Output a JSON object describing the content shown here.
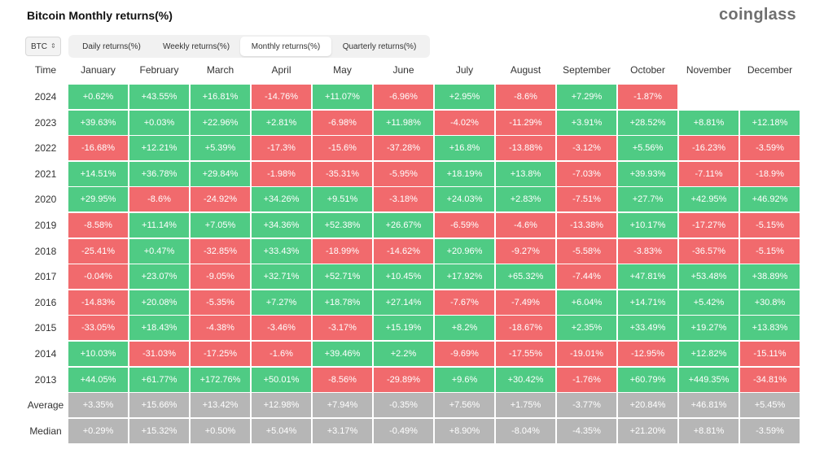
{
  "page": {
    "title": "Bitcoin Monthly returns(%)",
    "brand": "coinglass"
  },
  "asset_select": {
    "value": "BTC"
  },
  "tabs": [
    {
      "label": "Daily returns(%)",
      "active": false
    },
    {
      "label": "Weekly returns(%)",
      "active": false
    },
    {
      "label": "Monthly returns(%)",
      "active": true
    },
    {
      "label": "Quarterly returns(%)",
      "active": false
    }
  ],
  "colors": {
    "positive": "#4fcb84",
    "negative": "#f16a6d",
    "summary": "#b6b6b6"
  },
  "table": {
    "time_header": "Time",
    "months": [
      "January",
      "February",
      "March",
      "April",
      "May",
      "June",
      "July",
      "August",
      "September",
      "October",
      "November",
      "December"
    ],
    "rows": [
      {
        "label": "2024",
        "values": [
          "+0.62%",
          "+43.55%",
          "+16.81%",
          "-14.76%",
          "+11.07%",
          "-6.96%",
          "+2.95%",
          "-8.6%",
          "+7.29%",
          "-1.87%"
        ]
      },
      {
        "label": "2023",
        "values": [
          "+39.63%",
          "+0.03%",
          "+22.96%",
          "+2.81%",
          "-6.98%",
          "+11.98%",
          "-4.02%",
          "-11.29%",
          "+3.91%",
          "+28.52%",
          "+8.81%",
          "+12.18%"
        ]
      },
      {
        "label": "2022",
        "values": [
          "-16.68%",
          "+12.21%",
          "+5.39%",
          "-17.3%",
          "-15.6%",
          "-37.28%",
          "+16.8%",
          "-13.88%",
          "-3.12%",
          "+5.56%",
          "-16.23%",
          "-3.59%"
        ]
      },
      {
        "label": "2021",
        "values": [
          "+14.51%",
          "+36.78%",
          "+29.84%",
          "-1.98%",
          "-35.31%",
          "-5.95%",
          "+18.19%",
          "+13.8%",
          "-7.03%",
          "+39.93%",
          "-7.11%",
          "-18.9%"
        ]
      },
      {
        "label": "2020",
        "values": [
          "+29.95%",
          "-8.6%",
          "-24.92%",
          "+34.26%",
          "+9.51%",
          "-3.18%",
          "+24.03%",
          "+2.83%",
          "-7.51%",
          "+27.7%",
          "+42.95%",
          "+46.92%"
        ]
      },
      {
        "label": "2019",
        "values": [
          "-8.58%",
          "+11.14%",
          "+7.05%",
          "+34.36%",
          "+52.38%",
          "+26.67%",
          "-6.59%",
          "-4.6%",
          "-13.38%",
          "+10.17%",
          "-17.27%",
          "-5.15%"
        ]
      },
      {
        "label": "2018",
        "values": [
          "-25.41%",
          "+0.47%",
          "-32.85%",
          "+33.43%",
          "-18.99%",
          "-14.62%",
          "+20.96%",
          "-9.27%",
          "-5.58%",
          "-3.83%",
          "-36.57%",
          "-5.15%"
        ]
      },
      {
        "label": "2017",
        "values": [
          "-0.04%",
          "+23.07%",
          "-9.05%",
          "+32.71%",
          "+52.71%",
          "+10.45%",
          "+17.92%",
          "+65.32%",
          "-7.44%",
          "+47.81%",
          "+53.48%",
          "+38.89%"
        ]
      },
      {
        "label": "2016",
        "values": [
          "-14.83%",
          "+20.08%",
          "-5.35%",
          "+7.27%",
          "+18.78%",
          "+27.14%",
          "-7.67%",
          "-7.49%",
          "+6.04%",
          "+14.71%",
          "+5.42%",
          "+30.8%"
        ]
      },
      {
        "label": "2015",
        "values": [
          "-33.05%",
          "+18.43%",
          "-4.38%",
          "-3.46%",
          "-3.17%",
          "+15.19%",
          "+8.2%",
          "-18.67%",
          "+2.35%",
          "+33.49%",
          "+19.27%",
          "+13.83%"
        ]
      },
      {
        "label": "2014",
        "values": [
          "+10.03%",
          "-31.03%",
          "-17.25%",
          "-1.6%",
          "+39.46%",
          "+2.2%",
          "-9.69%",
          "-17.55%",
          "-19.01%",
          "-12.95%",
          "+12.82%",
          "-15.11%"
        ]
      },
      {
        "label": "2013",
        "values": [
          "+44.05%",
          "+61.77%",
          "+172.76%",
          "+50.01%",
          "-8.56%",
          "-29.89%",
          "+9.6%",
          "+30.42%",
          "-1.76%",
          "+60.79%",
          "+449.35%",
          "-34.81%"
        ]
      }
    ],
    "summary_rows": [
      {
        "label": "Average",
        "values": [
          "+3.35%",
          "+15.66%",
          "+13.42%",
          "+12.98%",
          "+7.94%",
          "-0.35%",
          "+7.56%",
          "+1.75%",
          "-3.77%",
          "+20.84%",
          "+46.81%",
          "+5.45%"
        ]
      },
      {
        "label": "Median",
        "values": [
          "+0.29%",
          "+15.32%",
          "+0.50%",
          "+5.04%",
          "+3.17%",
          "-0.49%",
          "+8.90%",
          "-8.04%",
          "-4.35%",
          "+21.20%",
          "+8.81%",
          "-3.59%"
        ]
      }
    ]
  }
}
